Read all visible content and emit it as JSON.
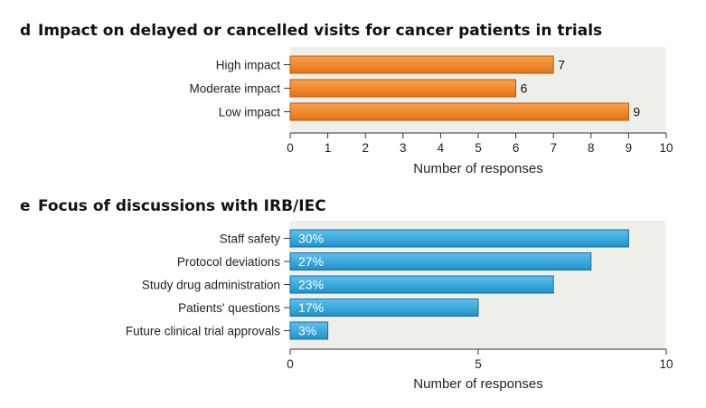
{
  "chart_data": [
    {
      "type": "bar",
      "orientation": "horizontal",
      "panel_letter": "d",
      "title": "Impact on delayed or cancelled visits for cancer patients in trials",
      "categories": [
        "High impact",
        "Moderate impact",
        "Low impact"
      ],
      "values": [
        7,
        6,
        9
      ],
      "value_labels": [
        "7",
        "6",
        "9"
      ],
      "xlabel": "Number of responses",
      "xlim": [
        0,
        10
      ],
      "xticks": [
        0,
        1,
        2,
        3,
        4,
        5,
        6,
        7,
        8,
        9,
        10
      ],
      "bar_color": "#f0882b",
      "bar_edge": "#b35a10",
      "background": "#efefea",
      "grid": false
    },
    {
      "type": "bar",
      "orientation": "horizontal",
      "panel_letter": "e",
      "title": "Focus of discussions with IRB/IEC",
      "categories": [
        "Staff safety",
        "Protocol deviations",
        "Study drug administration",
        "Patients' questions",
        "Future clinical trial approvals"
      ],
      "values": [
        9,
        8,
        7,
        5,
        1
      ],
      "value_labels": [
        "30%",
        "27%",
        "23%",
        "17%",
        "3%"
      ],
      "xlabel": "Number of responses",
      "xlim": [
        0,
        10
      ],
      "xticks": [
        0,
        5,
        10
      ],
      "bar_color": "#3aa8dc",
      "bar_edge": "#1a6e9e",
      "background": "#efefea",
      "grid": false
    }
  ]
}
